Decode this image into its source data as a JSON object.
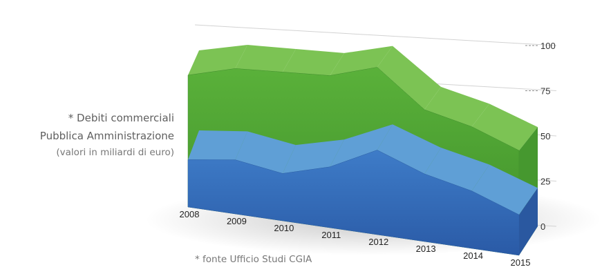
{
  "chart_data": {
    "type": "area",
    "title_lines": [
      "* Debiti commerciali",
      "Pubblica Amministrazione",
      "(valori in miliardi di euro)"
    ],
    "source": "* fonte Ufficio Studi CGIA",
    "categories": [
      "2008",
      "2009",
      "2010",
      "2011",
      "2012",
      "2013",
      "2014",
      "2015"
    ],
    "series": [
      {
        "name": "",
        "color": "#55a535",
        "values": [
          78,
          86,
          88,
          90,
          99,
          78,
          72,
          62
        ]
      },
      {
        "name": "",
        "color": "#3f74bd",
        "values": [
          28,
          32,
          28,
          36,
          50,
          40,
          34,
          24
        ]
      }
    ],
    "y_ticks": [
      "0",
      "25",
      "50",
      "75",
      "100"
    ],
    "ylim": [
      0,
      100
    ],
    "grid": true,
    "style": "3d-perspective"
  }
}
